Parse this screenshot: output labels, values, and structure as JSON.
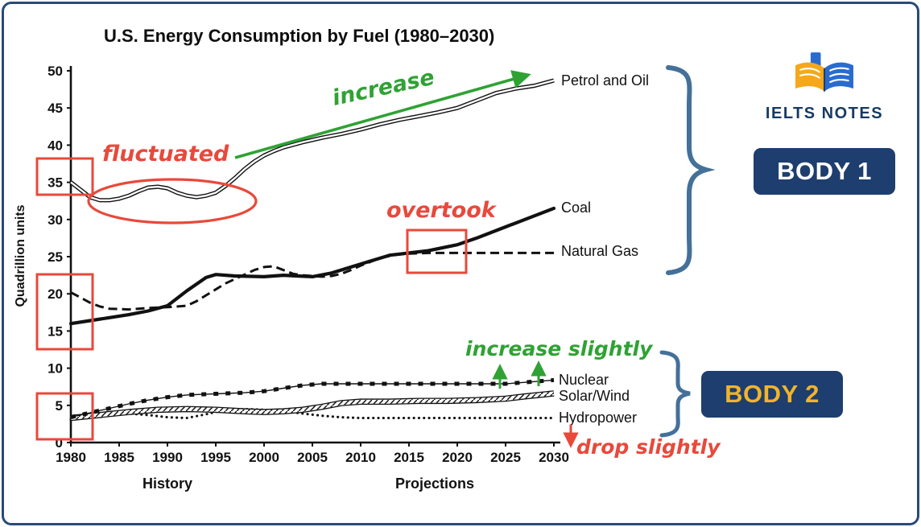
{
  "logo": {
    "brand": "IELTS NOTES"
  },
  "body_labels": {
    "body1": "BODY 1",
    "body2": "BODY 2"
  },
  "annotations": {
    "fluctuated": "fluctuated",
    "increase": "increase",
    "overtook": "overtook",
    "increase_slightly": "increase slightly",
    "drop_slightly": "drop slightly"
  },
  "colors": {
    "annotation_red": "#e8493b",
    "annotation_green": "#2fa234",
    "navy_badge": "#1d3e6e",
    "brace_blue": "#447099",
    "gold_text": "#f3b32a",
    "line_black": "#111111",
    "frame_blue": "#2a4a78"
  },
  "chart_data": {
    "type": "line",
    "title": "U.S. Energy Consumption by Fuel (1980–2030)",
    "ylabel": "Quadrillion units",
    "xlabel_history": "History",
    "xlabel_projections": "Projections",
    "xlim": [
      1980,
      2030
    ],
    "ylim": [
      0,
      50
    ],
    "x_ticks": [
      1980,
      1985,
      1990,
      1995,
      2000,
      2005,
      2010,
      2015,
      2020,
      2025,
      2030
    ],
    "y_ticks": [
      0,
      5,
      10,
      15,
      20,
      25,
      30,
      35,
      40,
      45,
      50
    ],
    "grid": false,
    "legend_position": "right-end-labels",
    "series": [
      {
        "name": "Petrol and Oil",
        "style": "double",
        "points": [
          [
            1980,
            35
          ],
          [
            1981,
            34
          ],
          [
            1982,
            33
          ],
          [
            1983,
            32.6
          ],
          [
            1984,
            32.6
          ],
          [
            1985,
            32.8
          ],
          [
            1986,
            33.2
          ],
          [
            1987,
            33.8
          ],
          [
            1988,
            34.3
          ],
          [
            1989,
            34.4
          ],
          [
            1990,
            34.2
          ],
          [
            1991,
            33.6
          ],
          [
            1992,
            33.2
          ],
          [
            1993,
            33
          ],
          [
            1994,
            33.2
          ],
          [
            1995,
            33.6
          ],
          [
            1996,
            34.5
          ],
          [
            1997,
            35.6
          ],
          [
            1998,
            36.8
          ],
          [
            1999,
            37.8
          ],
          [
            2000,
            38.6
          ],
          [
            2001,
            39.2
          ],
          [
            2002,
            39.7
          ],
          [
            2004,
            40.4
          ],
          [
            2006,
            41
          ],
          [
            2008,
            41.5
          ],
          [
            2010,
            42.1
          ],
          [
            2012,
            42.8
          ],
          [
            2014,
            43.4
          ],
          [
            2016,
            43.9
          ],
          [
            2018,
            44.4
          ],
          [
            2020,
            45
          ],
          [
            2022,
            46
          ],
          [
            2024,
            47
          ],
          [
            2026,
            47.6
          ],
          [
            2028,
            48
          ],
          [
            2030,
            48.7
          ]
        ]
      },
      {
        "name": "Coal",
        "style": "thick",
        "points": [
          [
            1980,
            16
          ],
          [
            1982,
            16.4
          ],
          [
            1984,
            16.8
          ],
          [
            1986,
            17.2
          ],
          [
            1988,
            17.7
          ],
          [
            1990,
            18.4
          ],
          [
            1992,
            20.4
          ],
          [
            1994,
            22.2
          ],
          [
            1995,
            22.6
          ],
          [
            1997,
            22.4
          ],
          [
            2000,
            22.3
          ],
          [
            2002,
            22.5
          ],
          [
            2005,
            22.3
          ],
          [
            2007,
            22.8
          ],
          [
            2009,
            23.6
          ],
          [
            2011,
            24.4
          ],
          [
            2013,
            25.2
          ],
          [
            2015,
            25.5
          ],
          [
            2017,
            25.8
          ],
          [
            2020,
            26.6
          ],
          [
            2022,
            27.5
          ],
          [
            2025,
            29
          ],
          [
            2027,
            30
          ],
          [
            2030,
            31.5
          ]
        ]
      },
      {
        "name": "Natural Gas",
        "style": "dashed",
        "points": [
          [
            1980,
            20.2
          ],
          [
            1981,
            19.5
          ],
          [
            1982,
            18.8
          ],
          [
            1983,
            18.3
          ],
          [
            1984,
            18
          ],
          [
            1986,
            17.9
          ],
          [
            1988,
            18.1
          ],
          [
            1990,
            18.2
          ],
          [
            1992,
            18.4
          ],
          [
            1993,
            19
          ],
          [
            1994,
            19.8
          ],
          [
            1995,
            20.6
          ],
          [
            1996,
            21.4
          ],
          [
            1997,
            22
          ],
          [
            1998,
            22.6
          ],
          [
            1999,
            23.2
          ],
          [
            2000,
            23.6
          ],
          [
            2001,
            23.7
          ],
          [
            2002,
            23.2
          ],
          [
            2003,
            22.7
          ],
          [
            2004,
            22.5
          ],
          [
            2005,
            22.4
          ],
          [
            2006,
            22.3
          ],
          [
            2007,
            22.4
          ],
          [
            2008,
            22.7
          ],
          [
            2009,
            23.2
          ],
          [
            2010,
            23.8
          ],
          [
            2011,
            24.3
          ],
          [
            2012,
            24.8
          ],
          [
            2013,
            25.1
          ],
          [
            2014,
            25.3
          ],
          [
            2015,
            25.4
          ],
          [
            2017,
            25.5
          ],
          [
            2020,
            25.5
          ],
          [
            2025,
            25.5
          ],
          [
            2030,
            25.5
          ]
        ]
      },
      {
        "name": "Nuclear",
        "style": "squares",
        "points": [
          [
            1980,
            3.4
          ],
          [
            1982,
            4
          ],
          [
            1984,
            4.6
          ],
          [
            1986,
            5.2
          ],
          [
            1988,
            5.7
          ],
          [
            1990,
            6.1
          ],
          [
            1992,
            6.4
          ],
          [
            1994,
            6.5
          ],
          [
            1996,
            6.6
          ],
          [
            1998,
            6.7
          ],
          [
            2000,
            6.9
          ],
          [
            2002,
            7.3
          ],
          [
            2004,
            7.7
          ],
          [
            2006,
            7.9
          ],
          [
            2010,
            7.9
          ],
          [
            2015,
            7.9
          ],
          [
            2020,
            7.9
          ],
          [
            2025,
            7.9
          ],
          [
            2027,
            8.1
          ],
          [
            2030,
            8.4
          ]
        ]
      },
      {
        "name": "Solar/Wind",
        "style": "hatched",
        "points": [
          [
            1980,
            3.3
          ],
          [
            1983,
            3.7
          ],
          [
            1986,
            4.1
          ],
          [
            1989,
            4.4
          ],
          [
            1992,
            4.5
          ],
          [
            1995,
            4.4
          ],
          [
            1998,
            4.2
          ],
          [
            2000,
            4.1
          ],
          [
            2002,
            4.2
          ],
          [
            2004,
            4.4
          ],
          [
            2006,
            4.8
          ],
          [
            2008,
            5.3
          ],
          [
            2010,
            5.5
          ],
          [
            2013,
            5.5
          ],
          [
            2016,
            5.6
          ],
          [
            2019,
            5.6
          ],
          [
            2022,
            5.7
          ],
          [
            2025,
            5.9
          ],
          [
            2027,
            6.2
          ],
          [
            2030,
            6.6
          ]
        ]
      },
      {
        "name": "Hydropower",
        "style": "dotted",
        "points": [
          [
            1980,
            3.1
          ],
          [
            1982,
            3.5
          ],
          [
            1984,
            3.8
          ],
          [
            1986,
            3.9
          ],
          [
            1988,
            3.7
          ],
          [
            1990,
            3.4
          ],
          [
            1992,
            3.3
          ],
          [
            1994,
            3.8
          ],
          [
            1996,
            4.4
          ],
          [
            1998,
            4.5
          ],
          [
            2000,
            4.4
          ],
          [
            2002,
            4.2
          ],
          [
            2004,
            3.9
          ],
          [
            2006,
            3.6
          ],
          [
            2008,
            3.4
          ],
          [
            2010,
            3.3
          ],
          [
            2013,
            3.3
          ],
          [
            2016,
            3.3
          ],
          [
            2020,
            3.3
          ],
          [
            2025,
            3.3
          ],
          [
            2030,
            3.3
          ]
        ]
      }
    ]
  }
}
